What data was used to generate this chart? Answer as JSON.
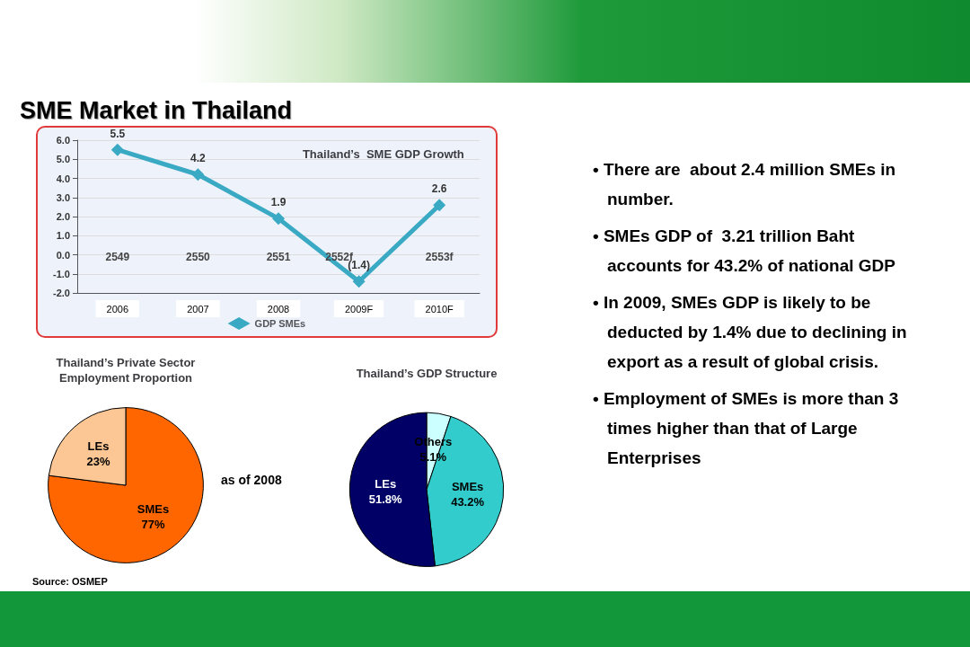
{
  "chart_data": [
    {
      "type": "line",
      "title": "Thailand’s  SME GDP Growth",
      "categories": [
        "2006",
        "2007",
        "2008",
        "2009F",
        "2010F"
      ],
      "series": [
        {
          "name": "GDP SMEs",
          "color": "#3aa9c4",
          "values": [
            5.5,
            4.2,
            1.9,
            -1.4,
            2.6
          ],
          "value_labels": [
            "5.5",
            "4.2",
            "1.9",
            "(1.4)",
            "2.6"
          ]
        }
      ],
      "ylim": [
        -2,
        6
      ],
      "yticks": [
        {
          "value": -2,
          "label": "-2.0"
        },
        {
          "value": -1,
          "label": "-1.0"
        },
        {
          "value": 0,
          "label": "0.0"
        },
        {
          "value": 1,
          "label": "1.0"
        },
        {
          "value": 2,
          "label": "2.0"
        },
        {
          "value": 3,
          "label": "3.0"
        },
        {
          "value": 4,
          "label": "4.0"
        },
        {
          "value": 5,
          "label": "5.0"
        },
        {
          "value": 6,
          "label": "6.0"
        }
      ],
      "grid": "y",
      "legend": "bottom",
      "marker": "diamond",
      "line_style": "solid",
      "annotations": [
        "2549",
        "2550",
        "2551",
        "2552f",
        "2553f"
      ]
    },
    {
      "type": "pie",
      "title": "Thailand’s Private Sector\nEmployment Proportion",
      "categories": [
        "SMEs",
        "LEs"
      ],
      "values": [
        77,
        23
      ],
      "colors": [
        "#ff6600",
        "#fcc794"
      ],
      "value_labels": [
        "77%",
        "23%"
      ],
      "annotations": [
        "as of 2008",
        "Source: OSMEP"
      ]
    },
    {
      "type": "pie",
      "title": "Thailand’s GDP Structure",
      "categories": [
        "Others",
        "SMEs",
        "LEs"
      ],
      "values": [
        5.1,
        43.2,
        51.8
      ],
      "colors": [
        "#ccffff",
        "#33cccc",
        "#000066"
      ],
      "value_labels": [
        "5.1%",
        "43.2%",
        "51.8%"
      ]
    },
    {
      "type": "other",
      "title": "SME Market in Thailand",
      "annotations": [
        "• There are  about 2.4 million SMEs in number.",
        "• SMEs GDP of  3.21 trillion Baht accounts for 43.2% of national GDP",
        "• In 2009, SMEs GDP is likely to be deducted by 1.4% due to declining in export as a result of global crisis.",
        "• Employment of SMEs is more than 3 times higher than that of Large Enterprises"
      ]
    }
  ]
}
